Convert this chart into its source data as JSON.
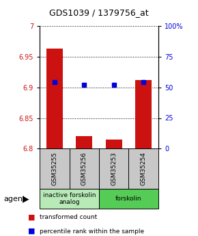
{
  "title": "GDS1039 / 1379756_at",
  "samples": [
    "GSM35255",
    "GSM35256",
    "GSM35253",
    "GSM35254"
  ],
  "red_values": [
    6.963,
    6.82,
    6.815,
    6.912
  ],
  "blue_values_pct": [
    54,
    52,
    52,
    54
  ],
  "ylim_left": [
    6.8,
    7.0
  ],
  "ylim_right": [
    0,
    100
  ],
  "yticks_left": [
    6.8,
    6.85,
    6.9,
    6.95,
    7.0
  ],
  "ytick_labels_left": [
    "6.8",
    "6.85",
    "6.9",
    "6.95",
    "7"
  ],
  "yticks_right": [
    0,
    25,
    50,
    75,
    100
  ],
  "ytick_labels_right": [
    "0",
    "25",
    "50",
    "75",
    "100%"
  ],
  "groups": [
    {
      "label": "inactive forskolin\nanalog",
      "samples_idx": [
        0,
        1
      ],
      "color": "#b8eab8"
    },
    {
      "label": "forskolin",
      "samples_idx": [
        2,
        3
      ],
      "color": "#55cc55"
    }
  ],
  "bar_color": "#cc1111",
  "dot_color": "#0000dd",
  "bar_width": 0.55,
  "bar_base": 6.8,
  "sample_box_color": "#c8c8c8",
  "axis_color_left": "#cc1111",
  "axis_color_right": "#0000dd",
  "legend_red": "transformed count",
  "legend_blue": "percentile rank within the sample"
}
